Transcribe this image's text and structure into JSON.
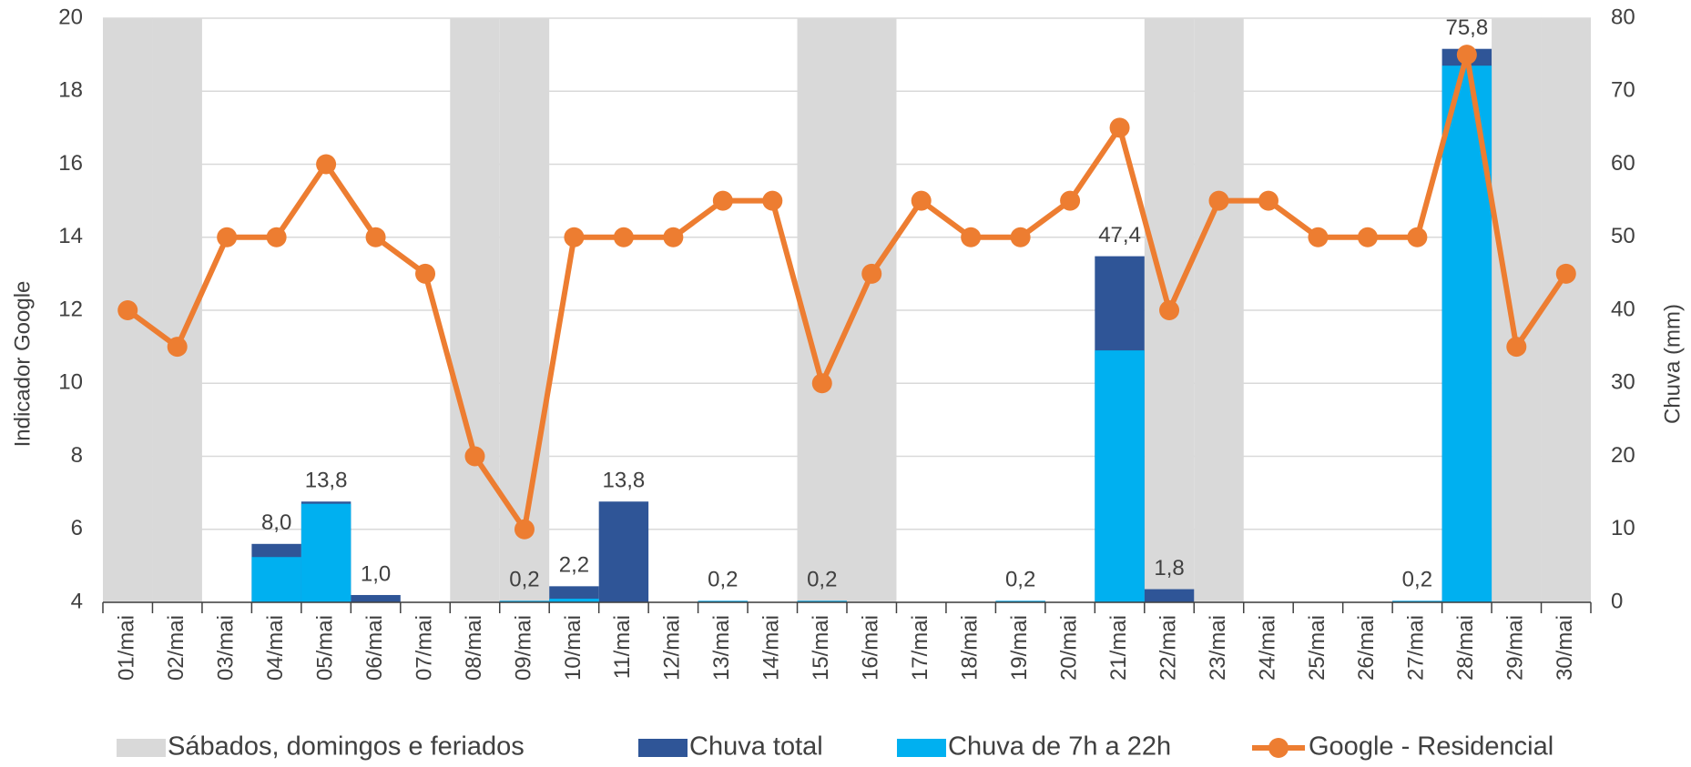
{
  "chart_data": {
    "type": "combo",
    "categories": [
      "01/mai",
      "02/mai",
      "03/mai",
      "04/mai",
      "05/mai",
      "06/mai",
      "07/mai",
      "08/mai",
      "09/mai",
      "10/mai",
      "11/mai",
      "12/mai",
      "13/mai",
      "14/mai",
      "15/mai",
      "16/mai",
      "17/mai",
      "18/mai",
      "19/mai",
      "20/mai",
      "21/mai",
      "22/mai",
      "23/mai",
      "24/mai",
      "25/mai",
      "26/mai",
      "27/mai",
      "28/mai",
      "29/mai",
      "30/mai"
    ],
    "series": [
      {
        "name": "Sábados, domingos e feriados",
        "type": "bar",
        "axis": "y2",
        "color": "#d9d9d9",
        "values": [
          80,
          80,
          null,
          null,
          null,
          null,
          null,
          80,
          80,
          null,
          null,
          null,
          null,
          null,
          80,
          80,
          null,
          null,
          null,
          null,
          null,
          80,
          80,
          null,
          null,
          null,
          null,
          null,
          80,
          80
        ]
      },
      {
        "name": "Chuva total",
        "type": "bar",
        "axis": "y2",
        "color": "#2f5597",
        "values": [
          0,
          0,
          0,
          8.0,
          13.8,
          1.0,
          0,
          0,
          0.2,
          2.2,
          13.8,
          0,
          0.2,
          0,
          0.2,
          0,
          0,
          0,
          0.2,
          0,
          47.4,
          1.8,
          0,
          0,
          0,
          0,
          0.2,
          75.8,
          0,
          0
        ],
        "value_labels": [
          null,
          null,
          null,
          "8,0",
          "13,8",
          "1,0",
          null,
          null,
          "0,2",
          "2,2",
          "13,8",
          null,
          "0,2",
          null,
          "0,2",
          null,
          null,
          null,
          "0,2",
          null,
          "47,4",
          "1,8",
          null,
          null,
          null,
          null,
          "0,2",
          "75,8",
          null,
          null
        ]
      },
      {
        "name": "Chuva de 7h a 22h",
        "type": "bar",
        "axis": "y2",
        "color": "#00b0f0",
        "values": [
          0,
          0,
          0,
          6.2,
          13.5,
          0,
          0,
          0,
          0.2,
          0.5,
          0,
          0,
          0.2,
          0,
          0.2,
          0,
          0,
          0,
          0.2,
          0,
          34.5,
          0,
          0,
          0,
          0,
          0,
          0.2,
          73.5,
          0,
          0
        ]
      },
      {
        "name": "Google - Residencial",
        "type": "line",
        "color": "#ed7d31",
        "values": [
          12,
          11,
          14,
          14,
          16,
          14,
          13,
          8,
          6,
          14,
          14,
          14,
          15,
          15,
          10,
          13,
          15,
          14,
          14,
          15,
          17,
          12,
          15,
          15,
          14,
          14,
          14,
          19,
          11,
          13
        ]
      }
    ],
    "ylabel": "Indicador Google",
    "y2label": "Chuva (mm)",
    "ylim": [
      4,
      20
    ],
    "yticks": [
      4,
      6,
      8,
      10,
      12,
      14,
      16,
      18,
      20
    ],
    "y2lim": [
      0,
      80
    ],
    "y2ticks": [
      0,
      10,
      20,
      30,
      40,
      50,
      60,
      70,
      80
    ],
    "grid": true,
    "legend": "bottom"
  }
}
